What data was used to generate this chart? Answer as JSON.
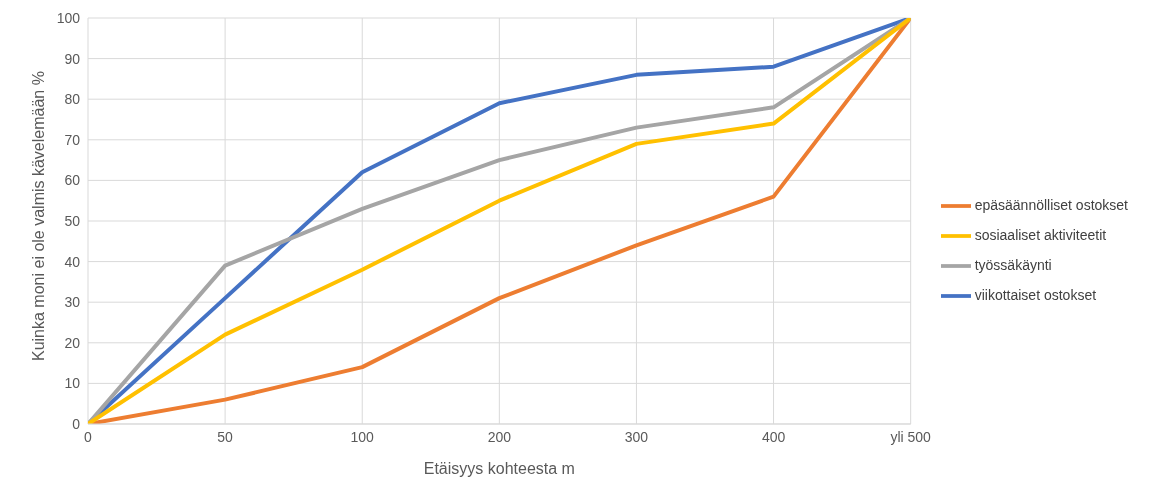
{
  "chart_data": {
    "type": "line",
    "xlabel": "Etäisyys kohteesta m",
    "ylabel": "Kuinka moni ei ole valmis kävelemään %",
    "categories": [
      "0",
      "50",
      "100",
      "200",
      "300",
      "400",
      "yli 500"
    ],
    "series": [
      {
        "name": "viikottaiset ostokset",
        "color": "#4472c4",
        "values": [
          0,
          31,
          62,
          79,
          86,
          88,
          100
        ]
      },
      {
        "name": "epäsäännölliset ostokset",
        "color": "#ed7d31",
        "values": [
          0,
          6,
          14,
          31,
          44,
          56,
          100
        ]
      },
      {
        "name": "työssäkäynti",
        "color": "#a5a5a5",
        "values": [
          0,
          39,
          53,
          65,
          73,
          78,
          100
        ]
      },
      {
        "name": "sosiaaliset aktiviteetit",
        "color": "#ffc000",
        "values": [
          0,
          22,
          38,
          55,
          69,
          74,
          100
        ]
      }
    ],
    "ylim": [
      0,
      100
    ],
    "yticks": [
      0,
      10,
      20,
      30,
      40,
      50,
      60,
      70,
      80,
      90,
      100
    ],
    "grid": true,
    "legend": "right",
    "marker": "none",
    "line_style": "solid"
  }
}
